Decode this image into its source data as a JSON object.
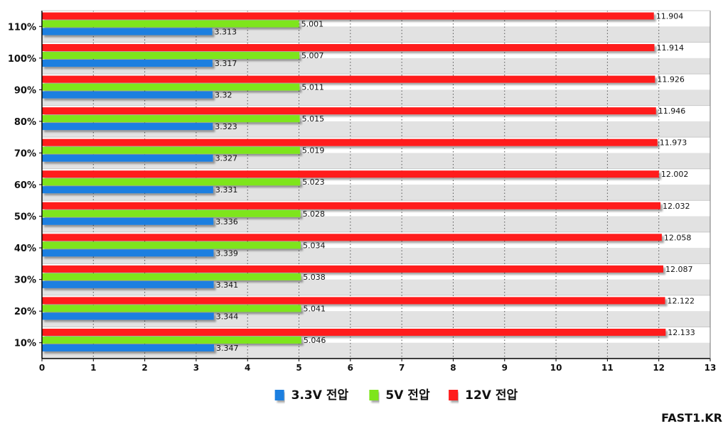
{
  "chart_data": {
    "type": "bar",
    "orientation": "horizontal",
    "categories": [
      "110%",
      "100%",
      "90%",
      "80%",
      "70%",
      "60%",
      "50%",
      "40%",
      "30%",
      "20%",
      "10%"
    ],
    "series": [
      {
        "name": "12V 전압",
        "color": "#ff1a1a",
        "values": [
          11.904,
          11.914,
          11.926,
          11.946,
          11.973,
          12.002,
          12.032,
          12.058,
          12.087,
          12.122,
          12.133
        ],
        "labels": [
          "11.904",
          "11.914",
          "11.926",
          "11.946",
          "11.973",
          "12.002",
          "12.032",
          "12.058",
          "12.087",
          "12.122",
          "12.133"
        ]
      },
      {
        "name": "5V 전압",
        "color": "#7ee51c",
        "values": [
          5.001,
          5.007,
          5.011,
          5.015,
          5.019,
          5.023,
          5.028,
          5.034,
          5.038,
          5.041,
          5.046
        ],
        "labels": [
          "5.001",
          "5.007",
          "5.011",
          "5.015",
          "5.019",
          "5.023",
          "5.028",
          "5.034",
          "5.038",
          "5.041",
          "5.046"
        ]
      },
      {
        "name": "3.3V 전압",
        "color": "#1e7fe0",
        "values": [
          3.313,
          3.317,
          3.32,
          3.323,
          3.327,
          3.331,
          3.336,
          3.339,
          3.341,
          3.344,
          3.347
        ],
        "labels": [
          "3.313",
          "3.317",
          "3.32",
          "3.323",
          "3.327",
          "3.331",
          "3.336",
          "3.339",
          "3.341",
          "3.344",
          "3.347"
        ]
      }
    ],
    "legend": [
      {
        "name": "3.3V 전압",
        "color": "#1e7fe0"
      },
      {
        "name": "5V 전압",
        "color": "#7ee51c"
      },
      {
        "name": "12V 전압",
        "color": "#ff1a1a"
      }
    ],
    "x_ticks": [
      "0",
      "1",
      "2",
      "3",
      "4",
      "5",
      "6",
      "7",
      "8",
      "9",
      "10",
      "11",
      "12",
      "13"
    ],
    "xlim": [
      0,
      13
    ],
    "grid": true,
    "legend_position": "bottom-center",
    "title": "",
    "xlabel": "",
    "ylabel": ""
  },
  "watermark": "FAST1.KR"
}
